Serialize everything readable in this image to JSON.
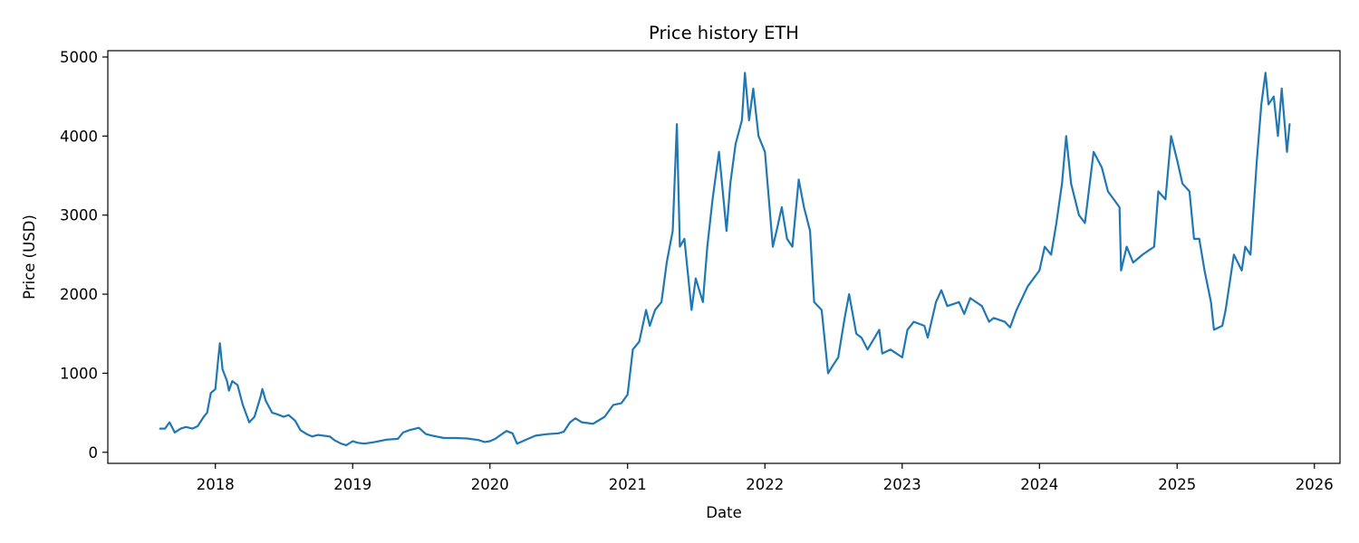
{
  "chart_data": {
    "type": "line",
    "title": "Price history ETH",
    "xlabel": "Date",
    "ylabel": "Price (USD)",
    "xlim": [
      "2017-03-21",
      "2026-03-10"
    ],
    "ylim": [
      -140,
      5080
    ],
    "x_ticks": [
      "2018",
      "2019",
      "2020",
      "2021",
      "2022",
      "2023",
      "2024",
      "2025",
      "2026"
    ],
    "y_ticks": [
      0,
      1000,
      2000,
      3000,
      4000,
      5000
    ],
    "grid": false,
    "legend": "none",
    "color": "#1f77b4",
    "series": [
      {
        "x": [
          "2017-08-07",
          "2017-08-20",
          "2017-09-01",
          "2017-09-15",
          "2017-10-01",
          "2017-10-15",
          "2017-11-01",
          "2017-11-15",
          "2017-12-01",
          "2017-12-10",
          "2017-12-20",
          "2018-01-01",
          "2018-01-08",
          "2018-01-13",
          "2018-01-20",
          "2018-02-01",
          "2018-02-06",
          "2018-02-15",
          "2018-03-01",
          "2018-03-15",
          "2018-04-01",
          "2018-04-15",
          "2018-05-01",
          "2018-05-06",
          "2018-05-15",
          "2018-06-01",
          "2018-06-15",
          "2018-07-01",
          "2018-07-15",
          "2018-08-01",
          "2018-08-15",
          "2018-09-01",
          "2018-09-15",
          "2018-10-01",
          "2018-11-01",
          "2018-11-15",
          "2018-12-01",
          "2018-12-15",
          "2019-01-01",
          "2019-01-15",
          "2019-02-01",
          "2019-03-01",
          "2019-04-01",
          "2019-05-01",
          "2019-05-15",
          "2019-06-01",
          "2019-06-26",
          "2019-07-15",
          "2019-08-01",
          "2019-09-01",
          "2019-10-01",
          "2019-11-01",
          "2019-12-01",
          "2019-12-18",
          "2020-01-01",
          "2020-01-15",
          "2020-02-14",
          "2020-03-01",
          "2020-03-13",
          "2020-04-01",
          "2020-05-01",
          "2020-06-01",
          "2020-07-01",
          "2020-07-15",
          "2020-08-01",
          "2020-08-15",
          "2020-09-01",
          "2020-09-15",
          "2020-10-01",
          "2020-11-01",
          "2020-11-24",
          "2020-12-15",
          "2021-01-01",
          "2021-01-15",
          "2021-02-01",
          "2021-02-19",
          "2021-03-01",
          "2021-03-15",
          "2021-04-01",
          "2021-04-15",
          "2021-05-01",
          "2021-05-12",
          "2021-05-20",
          "2021-06-01",
          "2021-06-20",
          "2021-07-01",
          "2021-07-20",
          "2021-08-01",
          "2021-08-15",
          "2021-09-01",
          "2021-09-21",
          "2021-10-01",
          "2021-10-15",
          "2021-11-01",
          "2021-11-09",
          "2021-11-20",
          "2021-12-01",
          "2021-12-15",
          "2022-01-01",
          "2022-01-22",
          "2022-02-01",
          "2022-02-15",
          "2022-03-01",
          "2022-03-15",
          "2022-04-01",
          "2022-04-15",
          "2022-05-01",
          "2022-05-12",
          "2022-06-01",
          "2022-06-18",
          "2022-07-01",
          "2022-07-15",
          "2022-08-01",
          "2022-08-13",
          "2022-09-01",
          "2022-09-15",
          "2022-10-01",
          "2022-11-01",
          "2022-11-09",
          "2022-12-01",
          "2023-01-01",
          "2023-01-15",
          "2023-02-01",
          "2023-03-01",
          "2023-03-10",
          "2023-04-01",
          "2023-04-15",
          "2023-05-01",
          "2023-06-01",
          "2023-06-15",
          "2023-07-01",
          "2023-08-01",
          "2023-08-20",
          "2023-09-01",
          "2023-10-01",
          "2023-10-15",
          "2023-11-01",
          "2023-12-01",
          "2024-01-01",
          "2024-01-15",
          "2024-02-01",
          "2024-02-15",
          "2024-03-01",
          "2024-03-12",
          "2024-03-25",
          "2024-04-15",
          "2024-05-01",
          "2024-05-24",
          "2024-06-15",
          "2024-07-01",
          "2024-08-01",
          "2024-08-05",
          "2024-08-20",
          "2024-09-06",
          "2024-10-01",
          "2024-11-01",
          "2024-11-12",
          "2024-12-01",
          "2024-12-16",
          "2025-01-01",
          "2025-01-15",
          "2025-02-03",
          "2025-02-15",
          "2025-03-01",
          "2025-03-15",
          "2025-04-01",
          "2025-04-09",
          "2025-05-01",
          "2025-05-10",
          "2025-06-01",
          "2025-06-22",
          "2025-07-01",
          "2025-07-15",
          "2025-08-01",
          "2025-08-13",
          "2025-08-24",
          "2025-09-01",
          "2025-09-15",
          "2025-09-26",
          "2025-10-06",
          "2025-10-20",
          "2025-10-27"
        ],
        "y": [
          300,
          300,
          380,
          250,
          300,
          320,
          300,
          330,
          450,
          500,
          750,
          800,
          1150,
          1380,
          1050,
          900,
          780,
          900,
          850,
          600,
          380,
          450,
          700,
          800,
          650,
          500,
          480,
          450,
          470,
          400,
          280,
          230,
          200,
          220,
          200,
          150,
          110,
          90,
          140,
          120,
          110,
          130,
          160,
          170,
          250,
          280,
          310,
          230,
          210,
          180,
          180,
          175,
          155,
          130,
          140,
          170,
          270,
          240,
          110,
          150,
          210,
          230,
          240,
          260,
          380,
          430,
          380,
          370,
          360,
          450,
          600,
          620,
          730,
          1300,
          1400,
          1800,
          1600,
          1800,
          1900,
          2400,
          2800,
          4150,
          2600,
          2700,
          1800,
          2200,
          1900,
          2600,
          3200,
          3800,
          2800,
          3400,
          3900,
          4200,
          4800,
          4200,
          4600,
          4000,
          3800,
          2600,
          2800,
          3100,
          2700,
          2600,
          3450,
          3100,
          2800,
          1900,
          1800,
          1000,
          1100,
          1200,
          1700,
          2000,
          1500,
          1450,
          1300,
          1550,
          1250,
          1300,
          1200,
          1550,
          1650,
          1600,
          1450,
          1900,
          2050,
          1850,
          1900,
          1750,
          1950,
          1850,
          1650,
          1700,
          1650,
          1580,
          1800,
          2100,
          2300,
          2600,
          2500,
          2900,
          3400,
          4000,
          3400,
          3000,
          2900,
          3800,
          3600,
          3300,
          3100,
          2300,
          2600,
          2400,
          2500,
          2600,
          3300,
          3200,
          4000,
          3700,
          3400,
          3300,
          2700,
          2700,
          2300,
          1900,
          1550,
          1600,
          1800,
          2500,
          2300,
          2600,
          2500,
          3700,
          4400,
          4800,
          4400,
          4500,
          4000,
          4600,
          3800,
          4150
        ]
      }
    ]
  }
}
